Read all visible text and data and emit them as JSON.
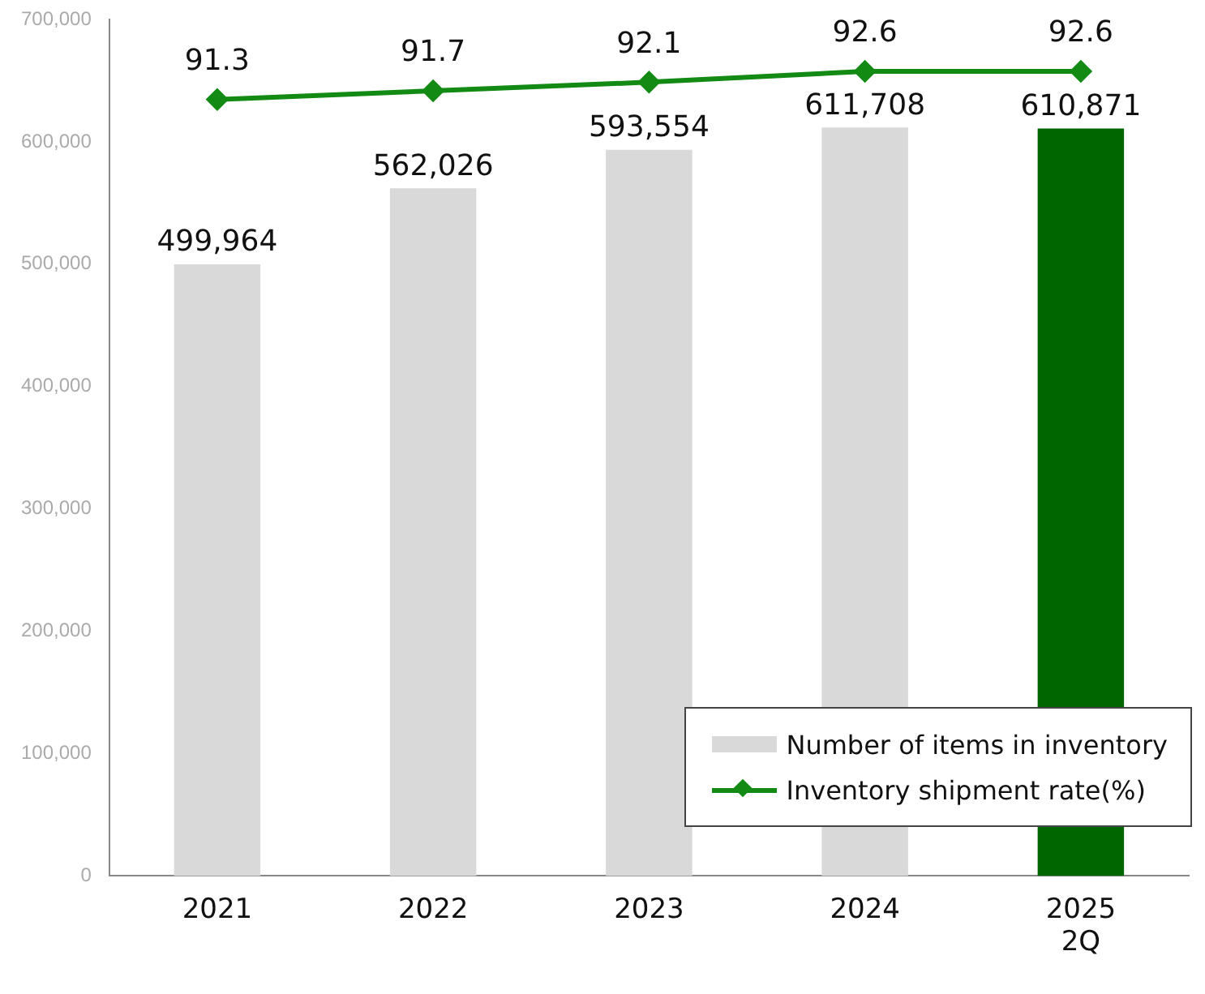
{
  "chart_data": {
    "type": "bar",
    "categories": [
      "2021",
      "2022",
      "2023",
      "2024",
      "2025\n2Q"
    ],
    "series": [
      {
        "name": "Number of items in inventory",
        "color": "#d9d9d9",
        "colors": [
          "#d9d9d9",
          "#d9d9d9",
          "#d9d9d9",
          "#d9d9d9",
          "#006600"
        ],
        "values": [
          499964,
          562026,
          593554,
          611708,
          610871
        ],
        "value_labels": [
          "499,964",
          "562,026",
          "593,554",
          "611,708",
          "610,871"
        ]
      },
      {
        "name": "Inventory shipment rate(%)",
        "type": "line",
        "axis": "y2",
        "color": "#138a13",
        "values": [
          91.3,
          91.7,
          92.1,
          92.6,
          92.6
        ],
        "value_labels": [
          "91.3",
          "91.7",
          "92.1",
          "92.6",
          "92.6"
        ]
      }
    ],
    "ylim": [
      0,
      700000
    ],
    "yticks": [
      {
        "value": 0,
        "label": "0"
      },
      {
        "value": 100000,
        "label": "100,000"
      },
      {
        "value": 200000,
        "label": "200,000"
      },
      {
        "value": 300000,
        "label": "300,000"
      },
      {
        "value": 400000,
        "label": "400,000"
      },
      {
        "value": 500000,
        "label": "500,000"
      },
      {
        "value": 600000,
        "label": "600,000"
      },
      {
        "value": 700000,
        "label": "700,000"
      }
    ],
    "y2lim": [
      55.4,
      95
    ],
    "tick_labels": [
      "x",
      "y"
    ],
    "marker": "diamond",
    "grid": false,
    "legend": "bottom right"
  }
}
